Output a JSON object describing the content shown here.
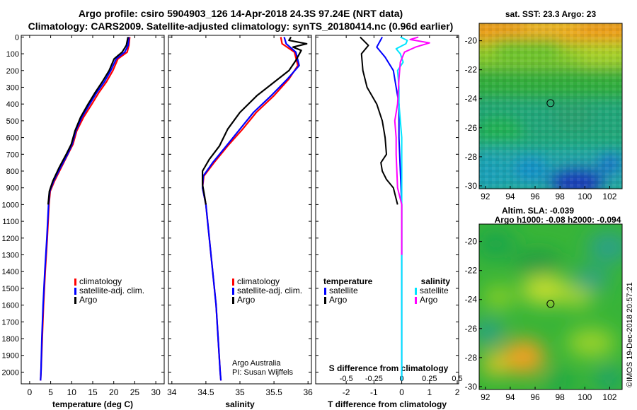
{
  "header": {
    "line1": "Argo profile: csiro 5904903_126 14-Apr-2018 24.3S 97.24E (NRT data)",
    "line2": "Climatology: CARS2009. Satellite-adjusted climatology: synTS_20180414.nc (0.96d earlier)"
  },
  "credit": {
    "org": "Argo Australia",
    "pi": "PI: Susan Wijffels"
  },
  "watermark": "©IMOS 19-Dec-2018 20:57:21",
  "colors": {
    "climatology": "#ff0000",
    "satellite": "#0000ff",
    "argo": "#000000",
    "satellite_s": "#00e5ff",
    "argo_s": "#ff00ff"
  },
  "chart_data": [
    {
      "id": "temperature",
      "type": "line",
      "xlabel": "temperature (deg C)",
      "xlim": [
        -2,
        32
      ],
      "ylim": [
        2070,
        -10
      ],
      "xticks": [
        0,
        5,
        10,
        15,
        20,
        25,
        30
      ],
      "yticks": [
        0,
        100,
        200,
        300,
        400,
        500,
        600,
        700,
        800,
        900,
        1000,
        1100,
        1200,
        1300,
        1400,
        1500,
        1600,
        1700,
        1800,
        1900,
        2000
      ],
      "legend": [
        "climatology",
        "satellite-adj. clim.",
        "Argo"
      ],
      "series": [
        {
          "name": "climatology",
          "color": "#ff0000",
          "points": [
            [
              23.8,
              0
            ],
            [
              23.6,
              50
            ],
            [
              23.2,
              90
            ],
            [
              21,
              130
            ],
            [
              19.8,
              200
            ],
            [
              18.2,
              270
            ],
            [
              16.5,
              330
            ],
            [
              14.8,
              400
            ],
            [
              12.8,
              480
            ],
            [
              11.2,
              560
            ],
            [
              10.3,
              640
            ],
            [
              9.1,
              700
            ],
            [
              7.5,
              780
            ],
            [
              5.9,
              860
            ],
            [
              4.9,
              920
            ],
            [
              4.6,
              1000
            ],
            [
              4.2,
              1200
            ],
            [
              3.7,
              1400
            ],
            [
              3.3,
              1600
            ],
            [
              3,
              1800
            ],
            [
              2.7,
              2000
            ],
            [
              2.6,
              2050
            ]
          ]
        },
        {
          "name": "satellite-adj. clim.",
          "color": "#0000ff",
          "points": [
            [
              23.6,
              0
            ],
            [
              23.4,
              50
            ],
            [
              22.6,
              90
            ],
            [
              20.6,
              130
            ],
            [
              19.3,
              200
            ],
            [
              17.7,
              270
            ],
            [
              16,
              330
            ],
            [
              14.3,
              400
            ],
            [
              12.4,
              480
            ],
            [
              11,
              560
            ],
            [
              10.1,
              640
            ],
            [
              9,
              700
            ],
            [
              7.3,
              780
            ],
            [
              5.7,
              860
            ],
            [
              4.8,
              920
            ],
            [
              4.5,
              1000
            ],
            [
              4.1,
              1200
            ],
            [
              3.6,
              1400
            ],
            [
              3.2,
              1600
            ],
            [
              2.9,
              1800
            ],
            [
              2.7,
              2000
            ],
            [
              2.6,
              2050
            ]
          ]
        },
        {
          "name": "Argo",
          "color": "#000000",
          "points": [
            [
              23.4,
              0
            ],
            [
              23,
              50
            ],
            [
              22,
              90
            ],
            [
              20.1,
              130
            ],
            [
              18.9,
              200
            ],
            [
              17.2,
              270
            ],
            [
              15.6,
              330
            ],
            [
              13.9,
              400
            ],
            [
              12.1,
              480
            ],
            [
              10.8,
              560
            ],
            [
              9.9,
              640
            ],
            [
              8.7,
              700
            ],
            [
              7,
              780
            ],
            [
              5.5,
              860
            ],
            [
              4.7,
              920
            ],
            [
              4.4,
              1000
            ]
          ]
        }
      ]
    },
    {
      "id": "salinity",
      "type": "line",
      "xlabel": "salinity",
      "xlim": [
        33.95,
        36.05
      ],
      "ylim": [
        2070,
        -10
      ],
      "xticks": [
        34,
        34.5,
        35,
        35.5,
        36
      ],
      "legend": [
        "climatology",
        "satellite-adj. clim.",
        "Argo"
      ],
      "series": [
        {
          "name": "climatology",
          "color": "#ff0000",
          "points": [
            [
              35.6,
              0
            ],
            [
              35.62,
              40
            ],
            [
              35.8,
              90
            ],
            [
              35.85,
              170
            ],
            [
              35.72,
              250
            ],
            [
              35.5,
              350
            ],
            [
              35.24,
              450
            ],
            [
              35.04,
              550
            ],
            [
              34.82,
              650
            ],
            [
              34.62,
              750
            ],
            [
              34.47,
              830
            ],
            [
              34.45,
              900
            ],
            [
              34.5,
              1000
            ],
            [
              34.55,
              1200
            ],
            [
              34.6,
              1400
            ],
            [
              34.65,
              1600
            ],
            [
              34.68,
              1800
            ],
            [
              34.71,
              2000
            ],
            [
              34.72,
              2050
            ]
          ]
        },
        {
          "name": "satellite-adj. clim.",
          "color": "#0000ff",
          "points": [
            [
              35.65,
              0
            ],
            [
              35.68,
              40
            ],
            [
              35.82,
              90
            ],
            [
              35.87,
              170
            ],
            [
              35.7,
              250
            ],
            [
              35.46,
              350
            ],
            [
              35.2,
              450
            ],
            [
              35.0,
              550
            ],
            [
              34.8,
              650
            ],
            [
              34.6,
              750
            ],
            [
              34.46,
              830
            ],
            [
              34.45,
              900
            ],
            [
              34.5,
              1000
            ],
            [
              34.55,
              1200
            ],
            [
              34.6,
              1400
            ],
            [
              34.65,
              1600
            ],
            [
              34.68,
              1800
            ],
            [
              34.71,
              2000
            ],
            [
              34.72,
              2050
            ]
          ]
        },
        {
          "name": "Argo",
          "color": "#000000",
          "points": [
            [
              35.75,
              0
            ],
            [
              35.72,
              20
            ],
            [
              35.98,
              40
            ],
            [
              35.78,
              60
            ],
            [
              35.9,
              80
            ],
            [
              35.82,
              140
            ],
            [
              35.72,
              200
            ],
            [
              35.5,
              270
            ],
            [
              35.25,
              350
            ],
            [
              35.0,
              450
            ],
            [
              34.82,
              550
            ],
            [
              34.7,
              650
            ],
            [
              34.55,
              730
            ],
            [
              34.45,
              800
            ],
            [
              34.45,
              880
            ],
            [
              34.48,
              950
            ],
            [
              34.5,
              1000
            ]
          ]
        }
      ]
    },
    {
      "id": "difference",
      "type": "line",
      "xlabel": "T difference from climatology",
      "xlabel_top": "S difference from climatology",
      "xlim": [
        -3.1,
        2.05
      ],
      "ylim": [
        2070,
        -10
      ],
      "xticks": [
        -2,
        -1,
        0,
        1,
        2
      ],
      "xticks_top_labels": [
        "-0.5",
        "-0.25",
        "0",
        "0.25",
        "0.5"
      ],
      "xticks_top_pos": [
        -2,
        -1,
        0,
        1,
        2
      ],
      "legend_temperature": {
        "title": "temperature",
        "items": [
          "satellite",
          "Argo"
        ]
      },
      "legend_salinity": {
        "title": "salinity",
        "items": [
          "satellite",
          "Argo"
        ]
      },
      "series": [
        {
          "name": "satellite",
          "group": "temperature",
          "color": "#0000ff",
          "points": [
            [
              -0.7,
              0
            ],
            [
              -0.9,
              60
            ],
            [
              -0.6,
              120
            ],
            [
              -0.3,
              200
            ],
            [
              -0.2,
              300
            ],
            [
              -0.1,
              400
            ],
            [
              -0.1,
              600
            ],
            [
              -0.05,
              800
            ],
            [
              0,
              1000
            ],
            [
              0,
              1500
            ],
            [
              0,
              2000
            ],
            [
              0,
              2050
            ]
          ]
        },
        {
          "name": "Argo",
          "group": "temperature",
          "color": "#000000",
          "points": [
            [
              -1.5,
              0
            ],
            [
              -1.2,
              50
            ],
            [
              -1.45,
              100
            ],
            [
              -1.4,
              200
            ],
            [
              -1.25,
              300
            ],
            [
              -0.9,
              400
            ],
            [
              -0.7,
              500
            ],
            [
              -0.6,
              600
            ],
            [
              -0.55,
              700
            ],
            [
              -0.75,
              750
            ],
            [
              -0.7,
              800
            ],
            [
              -0.55,
              850
            ],
            [
              -0.3,
              900
            ],
            [
              -0.15,
              1000
            ]
          ]
        },
        {
          "name": "satellite",
          "group": "salinity",
          "color": "#00e5ff",
          "points": [
            [
              -0.05,
              0
            ],
            [
              0.2,
              20
            ],
            [
              0.15,
              40
            ],
            [
              -0.2,
              70
            ],
            [
              -0.05,
              100
            ],
            [
              0.05,
              150
            ],
            [
              -0.15,
              200
            ],
            [
              -0.1,
              300
            ],
            [
              -0.1,
              400
            ],
            [
              0,
              600
            ],
            [
              0,
              900
            ],
            [
              0,
              1500
            ],
            [
              0,
              2000
            ],
            [
              0,
              2050
            ]
          ]
        },
        {
          "name": "Argo",
          "group": "salinity",
          "color": "#ff00ff",
          "points": [
            [
              0.6,
              0
            ],
            [
              0.3,
              15
            ],
            [
              1.0,
              35
            ],
            [
              0.5,
              60
            ],
            [
              0.1,
              90
            ],
            [
              -0.05,
              150
            ],
            [
              -0.1,
              250
            ],
            [
              -0.15,
              400
            ],
            [
              -0.25,
              500
            ],
            [
              -0.2,
              600
            ],
            [
              -0.2,
              700
            ],
            [
              -0.15,
              900
            ],
            [
              0,
              1000
            ],
            [
              0,
              1300
            ]
          ]
        }
      ]
    },
    {
      "id": "sst_map",
      "type": "heatmap",
      "title": "sat. SST: 23.3 Argo: 23",
      "xlim": [
        91.5,
        103
      ],
      "ylim": [
        -30.2,
        -18.8
      ],
      "xticks": [
        92,
        94,
        96,
        98,
        100,
        102
      ],
      "yticks": [
        -20,
        -22,
        -24,
        -26,
        -28,
        -30
      ],
      "marker": [
        97.24,
        -24.3
      ]
    },
    {
      "id": "sla_map",
      "type": "heatmap",
      "title": "Altim. SLA: -0.039",
      "subtitle": "Argo h1000: -0.08 h2000: -0.094",
      "xlim": [
        91.5,
        103
      ],
      "ylim": [
        -30.2,
        -18.8
      ],
      "xticks": [
        92,
        94,
        96,
        98,
        100,
        102
      ],
      "yticks": [
        -20,
        -22,
        -24,
        -26,
        -28,
        -30
      ],
      "marker": [
        97.24,
        -24.3
      ]
    }
  ]
}
